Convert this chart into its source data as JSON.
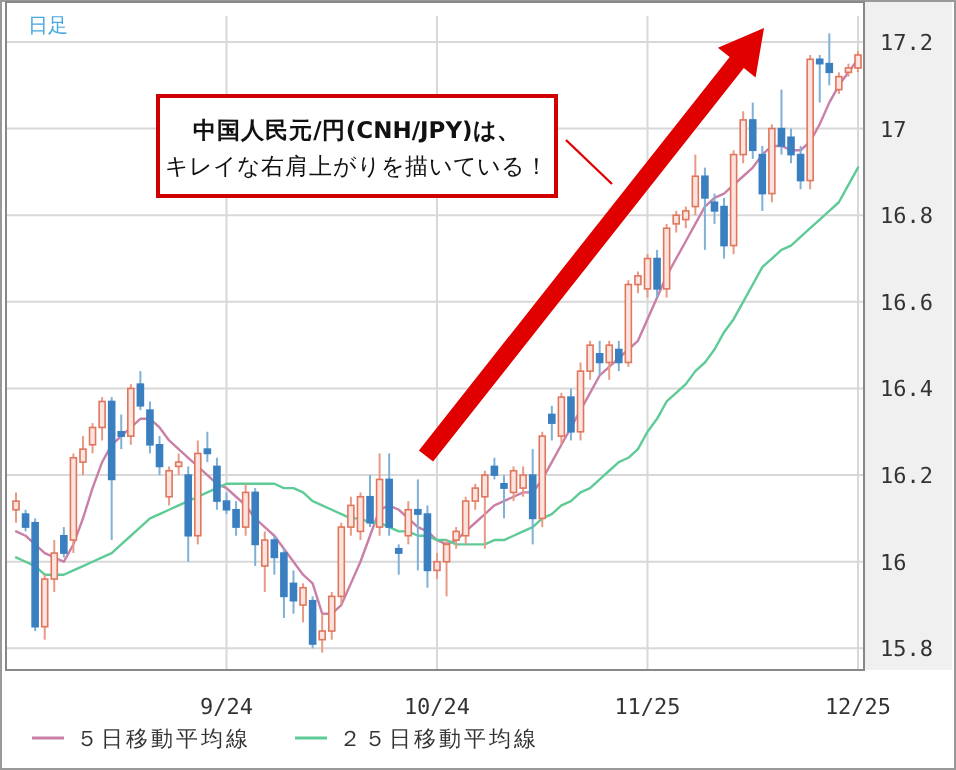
{
  "chart_data": {
    "type": "candlestick",
    "categories": [
      null,
      null,
      null,
      null,
      null,
      null,
      null,
      null,
      null,
      null,
      null,
      null,
      null,
      null,
      null,
      null,
      null,
      null,
      null,
      null,
      null,
      null,
      "9/24",
      null,
      null,
      null,
      null,
      null,
      null,
      null,
      null,
      null,
      null,
      null,
      null,
      null,
      null,
      null,
      null,
      null,
      null,
      null,
      null,
      null,
      "10/24",
      null,
      null,
      null,
      null,
      null,
      null,
      null,
      null,
      null,
      null,
      null,
      null,
      null,
      null,
      null,
      null,
      null,
      null,
      null,
      null,
      null,
      "11/25",
      null,
      null,
      null,
      null,
      null,
      null,
      null,
      null,
      null,
      null,
      null,
      null,
      null,
      null,
      null,
      null,
      null,
      null,
      null,
      null,
      null,
      "12/25"
    ],
    "ohlc": [
      [
        16.12,
        16.16,
        16.09,
        16.14
      ],
      [
        16.11,
        16.12,
        16.07,
        16.08
      ],
      [
        16.09,
        16.1,
        15.84,
        15.85
      ],
      [
        15.85,
        15.97,
        15.82,
        15.96
      ],
      [
        15.96,
        16.05,
        15.93,
        16.02
      ],
      [
        16.06,
        16.08,
        16.01,
        16.02
      ],
      [
        16.05,
        16.25,
        16.02,
        16.24
      ],
      [
        16.23,
        16.29,
        16.2,
        16.26
      ],
      [
        16.27,
        16.32,
        16.25,
        16.31
      ],
      [
        16.31,
        16.38,
        16.28,
        16.37
      ],
      [
        16.37,
        16.38,
        16.05,
        16.19
      ],
      [
        16.3,
        16.34,
        16.26,
        16.29
      ],
      [
        16.29,
        16.41,
        16.27,
        16.4
      ],
      [
        16.41,
        16.44,
        16.35,
        16.36
      ],
      [
        16.35,
        16.37,
        16.25,
        16.27
      ],
      [
        16.27,
        16.29,
        16.2,
        16.22
      ],
      [
        16.15,
        16.22,
        16.13,
        16.21
      ],
      [
        16.22,
        16.25,
        16.2,
        16.23
      ],
      [
        16.2,
        16.22,
        16.0,
        16.06
      ],
      [
        16.06,
        16.28,
        16.04,
        16.25
      ],
      [
        16.26,
        16.3,
        16.23,
        16.25
      ],
      [
        16.22,
        16.24,
        16.12,
        16.14
      ],
      [
        16.14,
        16.16,
        16.11,
        16.12
      ],
      [
        16.12,
        16.14,
        16.06,
        16.08
      ],
      [
        16.08,
        16.18,
        16.06,
        16.16
      ],
      [
        16.16,
        16.17,
        15.99,
        16.04
      ],
      [
        15.99,
        16.07,
        15.93,
        16.05
      ],
      [
        16.05,
        16.06,
        15.97,
        16.01
      ],
      [
        16.02,
        16.03,
        15.87,
        15.92
      ],
      [
        15.95,
        15.98,
        15.88,
        15.91
      ],
      [
        15.9,
        15.95,
        15.86,
        15.94
      ],
      [
        15.91,
        15.92,
        15.8,
        15.81
      ],
      [
        15.82,
        15.88,
        15.79,
        15.84
      ],
      [
        15.84,
        15.93,
        15.82,
        15.92
      ],
      [
        15.92,
        16.09,
        15.9,
        16.08
      ],
      [
        16.08,
        16.15,
        16.06,
        16.13
      ],
      [
        16.07,
        16.16,
        16.05,
        16.15
      ],
      [
        16.15,
        16.2,
        16.08,
        16.09
      ],
      [
        16.08,
        16.25,
        16.06,
        16.19
      ],
      [
        16.19,
        16.25,
        16.06,
        16.08
      ],
      [
        16.03,
        16.04,
        15.97,
        16.02
      ],
      [
        16.06,
        16.14,
        16.04,
        16.12
      ],
      [
        16.12,
        16.19,
        15.98,
        16.11
      ],
      [
        16.11,
        16.13,
        15.94,
        15.98
      ],
      [
        15.98,
        16.02,
        15.96,
        16.0
      ],
      [
        16.0,
        16.05,
        15.92,
        16.04
      ],
      [
        16.05,
        16.08,
        16.03,
        16.07
      ],
      [
        16.06,
        16.15,
        16.04,
        16.14
      ],
      [
        16.14,
        16.18,
        16.12,
        16.17
      ],
      [
        16.15,
        16.21,
        16.03,
        16.2
      ],
      [
        16.22,
        16.24,
        16.19,
        16.2
      ],
      [
        16.18,
        16.2,
        16.1,
        16.17
      ],
      [
        16.16,
        16.22,
        16.14,
        16.21
      ],
      [
        16.17,
        16.22,
        16.15,
        16.2
      ],
      [
        16.2,
        16.26,
        16.04,
        16.1
      ],
      [
        16.1,
        16.3,
        16.08,
        16.29
      ],
      [
        16.34,
        16.36,
        16.28,
        16.32
      ],
      [
        16.29,
        16.39,
        16.27,
        16.38
      ],
      [
        16.38,
        16.4,
        16.28,
        16.3
      ],
      [
        16.3,
        16.46,
        16.28,
        16.44
      ],
      [
        16.44,
        16.51,
        16.42,
        16.5
      ],
      [
        16.48,
        16.51,
        16.43,
        16.46
      ],
      [
        16.46,
        16.51,
        16.42,
        16.5
      ],
      [
        16.49,
        16.51,
        16.44,
        16.46
      ],
      [
        16.46,
        16.65,
        16.45,
        16.64
      ],
      [
        16.64,
        16.67,
        16.62,
        16.66
      ],
      [
        16.63,
        16.71,
        16.61,
        16.7
      ],
      [
        16.7,
        16.72,
        16.61,
        16.63
      ],
      [
        16.63,
        16.78,
        16.61,
        16.77
      ],
      [
        16.78,
        16.81,
        16.76,
        16.8
      ],
      [
        16.79,
        16.82,
        16.77,
        16.81
      ],
      [
        16.82,
        16.94,
        16.8,
        16.89
      ],
      [
        16.89,
        16.91,
        16.72,
        16.84
      ],
      [
        16.83,
        16.85,
        16.78,
        16.81
      ],
      [
        16.82,
        16.84,
        16.7,
        16.73
      ],
      [
        16.73,
        16.95,
        16.71,
        16.94
      ],
      [
        16.94,
        17.04,
        16.92,
        17.02
      ],
      [
        17.02,
        17.06,
        16.93,
        16.95
      ],
      [
        16.94,
        16.96,
        16.81,
        16.85
      ],
      [
        16.85,
        17.01,
        16.83,
        17.0
      ],
      [
        17.0,
        17.09,
        16.94,
        16.96
      ],
      [
        16.98,
        17.0,
        16.92,
        16.94
      ],
      [
        16.94,
        16.96,
        16.86,
        16.88
      ],
      [
        16.88,
        17.17,
        16.86,
        17.16
      ],
      [
        17.16,
        17.17,
        17.06,
        17.15
      ],
      [
        17.15,
        17.22,
        17.1,
        17.13
      ],
      [
        17.09,
        17.13,
        17.08,
        17.12
      ],
      [
        17.13,
        17.15,
        17.12,
        17.14
      ],
      [
        17.14,
        17.18,
        17.13,
        17.17
      ]
    ],
    "series": [
      {
        "name": "５日移動平均線",
        "type": "line",
        "color": "#c97fa6",
        "values": [
          16.07,
          16.06,
          16.04,
          16.02,
          16.01,
          16.0,
          16.04,
          16.1,
          16.17,
          16.23,
          16.27,
          16.29,
          16.31,
          16.33,
          16.33,
          16.31,
          16.28,
          16.26,
          16.24,
          16.22,
          16.2,
          16.18,
          16.17,
          16.15,
          16.13,
          16.1,
          16.08,
          16.06,
          16.03,
          16.0,
          15.97,
          15.95,
          15.88,
          15.88,
          15.9,
          15.95,
          16.0,
          16.06,
          16.12,
          16.13,
          16.12,
          16.1,
          16.08,
          16.07,
          16.05,
          16.04,
          16.05,
          16.07,
          16.09,
          16.11,
          16.13,
          16.14,
          16.15,
          16.16,
          16.16,
          16.19,
          16.23,
          16.27,
          16.31,
          16.35,
          16.39,
          16.43,
          16.45,
          16.47,
          16.49,
          16.51,
          16.56,
          16.61,
          16.66,
          16.7,
          16.74,
          16.78,
          16.82,
          16.84,
          16.85,
          16.87,
          16.89,
          16.91,
          16.94,
          16.96,
          16.96,
          16.95,
          16.95,
          16.97,
          17.01,
          17.06,
          17.1,
          17.13,
          17.16
        ]
      },
      {
        "name": "２５日移動平均線",
        "type": "line",
        "color": "#5ecb96",
        "values": [
          16.01,
          16.0,
          15.99,
          15.97,
          15.97,
          15.97,
          15.98,
          15.99,
          16.0,
          16.01,
          16.02,
          16.04,
          16.06,
          16.08,
          16.1,
          16.11,
          16.12,
          16.13,
          16.14,
          16.15,
          16.16,
          16.17,
          16.18,
          16.18,
          16.18,
          16.18,
          16.18,
          16.18,
          16.17,
          16.17,
          16.16,
          16.14,
          16.13,
          16.12,
          16.11,
          16.1,
          16.1,
          16.09,
          16.09,
          16.08,
          16.07,
          16.07,
          16.06,
          16.06,
          16.05,
          16.05,
          16.04,
          16.04,
          16.04,
          16.04,
          16.05,
          16.05,
          16.06,
          16.07,
          16.08,
          16.1,
          16.11,
          16.13,
          16.14,
          16.16,
          16.17,
          16.19,
          16.21,
          16.23,
          16.24,
          16.26,
          16.3,
          16.33,
          16.37,
          16.39,
          16.41,
          16.44,
          16.46,
          16.49,
          16.53,
          16.56,
          16.6,
          16.64,
          16.68,
          16.7,
          16.72,
          16.73,
          16.75,
          16.77,
          16.79,
          16.81,
          16.83,
          16.87,
          16.91
        ]
      }
    ],
    "ylim": [
      15.75,
      17.26
    ],
    "yticks": [
      15.8,
      16,
      16.2,
      16.4,
      16.6,
      16.8,
      17,
      17.2
    ],
    "grid": true,
    "legend": "bottom",
    "annotations": [
      "日足",
      "中国人民元/円(CNH/JPY)は、",
      "キレイな右肩上がりを描いている！"
    ]
  }
}
